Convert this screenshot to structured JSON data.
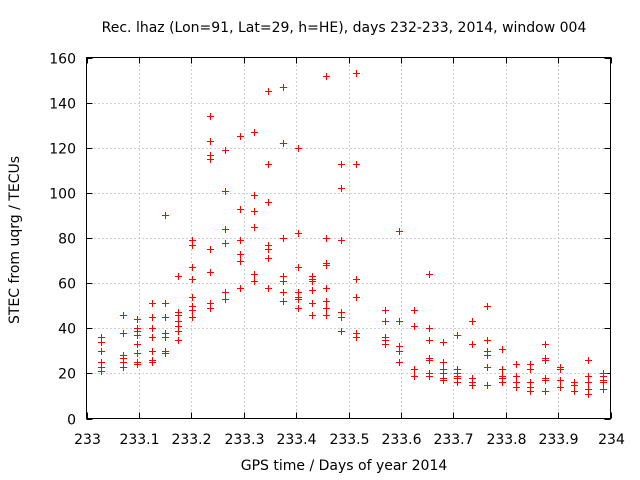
{
  "chart_data": {
    "type": "scatter",
    "title": "Rec. lhaz (Lon=91, Lat=29, h=HE), days 232-233, 2014, window 004",
    "xlabel": "GPS time / Days of year 2014",
    "ylabel": "STEC from uqrg / TECUs",
    "xlim": [
      233,
      234
    ],
    "ylim": [
      0,
      160
    ],
    "xticks": [
      233,
      233.1,
      233.2,
      233.3,
      233.4,
      233.5,
      233.6,
      233.7,
      233.8,
      233.9,
      234
    ],
    "xtick_labels": [
      "233",
      "233.1",
      "233.2",
      "233.3",
      "233.4",
      "233.5",
      "233.6",
      "233.7",
      "233.8",
      "233.9",
      "234"
    ],
    "yticks": [
      0,
      20,
      40,
      60,
      80,
      100,
      120,
      140,
      160
    ],
    "ytick_labels": [
      "0",
      "20",
      "40",
      "60",
      "80",
      "100",
      "120",
      "140",
      "160"
    ],
    "grid": true,
    "legend": "none",
    "marker": "plus",
    "color": "#ff0000",
    "points": [
      [
        233.028,
        36
      ],
      [
        233.028,
        34
      ],
      [
        233.028,
        30
      ],
      [
        233.028,
        25
      ],
      [
        233.028,
        23
      ],
      [
        233.028,
        21
      ],
      [
        233.069,
        46
      ],
      [
        233.069,
        38
      ],
      [
        233.069,
        28
      ],
      [
        233.069,
        27
      ],
      [
        233.069,
        25
      ],
      [
        233.069,
        23
      ],
      [
        233.097,
        44
      ],
      [
        233.097,
        40
      ],
      [
        233.097,
        39
      ],
      [
        233.097,
        37
      ],
      [
        233.097,
        33
      ],
      [
        233.097,
        29
      ],
      [
        233.097,
        25
      ],
      [
        233.097,
        24
      ],
      [
        233.125,
        51
      ],
      [
        233.125,
        45
      ],
      [
        233.125,
        40
      ],
      [
        233.125,
        36
      ],
      [
        233.125,
        30
      ],
      [
        233.125,
        26
      ],
      [
        233.125,
        25
      ],
      [
        233.149,
        90
      ],
      [
        233.149,
        51
      ],
      [
        233.149,
        45
      ],
      [
        233.149,
        38
      ],
      [
        233.149,
        36
      ],
      [
        233.149,
        30
      ],
      [
        233.149,
        29
      ],
      [
        233.174,
        63
      ],
      [
        233.174,
        47
      ],
      [
        233.174,
        46
      ],
      [
        233.174,
        43
      ],
      [
        233.174,
        41
      ],
      [
        233.174,
        39
      ],
      [
        233.174,
        35
      ],
      [
        233.201,
        79
      ],
      [
        233.201,
        77
      ],
      [
        233.201,
        67
      ],
      [
        233.201,
        62
      ],
      [
        233.201,
        54
      ],
      [
        233.201,
        50
      ],
      [
        233.201,
        48
      ],
      [
        233.201,
        45
      ],
      [
        233.236,
        134
      ],
      [
        233.236,
        123
      ],
      [
        233.236,
        117
      ],
      [
        233.236,
        115
      ],
      [
        233.236,
        75
      ],
      [
        233.236,
        65
      ],
      [
        233.236,
        51
      ],
      [
        233.236,
        49
      ],
      [
        233.264,
        119
      ],
      [
        233.264,
        101
      ],
      [
        233.264,
        84
      ],
      [
        233.264,
        78
      ],
      [
        233.264,
        56
      ],
      [
        233.264,
        53
      ],
      [
        233.292,
        125
      ],
      [
        233.292,
        93
      ],
      [
        233.292,
        79
      ],
      [
        233.292,
        73
      ],
      [
        233.292,
        70
      ],
      [
        233.292,
        58
      ],
      [
        233.319,
        127
      ],
      [
        233.319,
        99
      ],
      [
        233.319,
        92
      ],
      [
        233.319,
        92
      ],
      [
        233.319,
        85
      ],
      [
        233.319,
        64
      ],
      [
        233.319,
        61
      ],
      [
        233.347,
        145
      ],
      [
        233.347,
        113
      ],
      [
        233.347,
        96
      ],
      [
        233.347,
        77
      ],
      [
        233.347,
        75
      ],
      [
        233.347,
        71
      ],
      [
        233.347,
        58
      ],
      [
        233.375,
        147
      ],
      [
        233.375,
        122
      ],
      [
        233.375,
        80
      ],
      [
        233.375,
        63
      ],
      [
        233.375,
        61
      ],
      [
        233.375,
        56
      ],
      [
        233.375,
        52
      ],
      [
        233.403,
        120
      ],
      [
        233.403,
        82
      ],
      [
        233.403,
        67
      ],
      [
        233.403,
        56
      ],
      [
        233.403,
        54
      ],
      [
        233.403,
        53
      ],
      [
        233.403,
        49
      ],
      [
        233.431,
        63
      ],
      [
        233.431,
        62
      ],
      [
        233.431,
        61
      ],
      [
        233.431,
        57
      ],
      [
        233.431,
        51
      ],
      [
        233.431,
        46
      ],
      [
        233.458,
        152
      ],
      [
        233.458,
        80
      ],
      [
        233.458,
        69
      ],
      [
        233.458,
        68
      ],
      [
        233.458,
        58
      ],
      [
        233.458,
        52
      ],
      [
        233.458,
        49
      ],
      [
        233.458,
        46
      ],
      [
        233.486,
        113
      ],
      [
        233.486,
        102
      ],
      [
        233.486,
        79
      ],
      [
        233.486,
        47
      ],
      [
        233.486,
        45
      ],
      [
        233.486,
        39
      ],
      [
        233.514,
        153
      ],
      [
        233.514,
        113
      ],
      [
        233.514,
        62
      ],
      [
        233.514,
        54
      ],
      [
        233.514,
        38
      ],
      [
        233.514,
        36
      ],
      [
        233.569,
        48
      ],
      [
        233.569,
        43
      ],
      [
        233.569,
        36
      ],
      [
        233.569,
        35
      ],
      [
        233.569,
        33
      ],
      [
        233.597,
        83
      ],
      [
        233.597,
        43
      ],
      [
        233.597,
        32
      ],
      [
        233.597,
        30
      ],
      [
        233.597,
        25
      ],
      [
        233.625,
        48
      ],
      [
        233.625,
        41
      ],
      [
        233.625,
        22
      ],
      [
        233.625,
        19
      ],
      [
        233.653,
        64
      ],
      [
        233.653,
        40
      ],
      [
        233.653,
        35
      ],
      [
        233.653,
        27
      ],
      [
        233.653,
        26
      ],
      [
        233.653,
        20
      ],
      [
        233.653,
        19
      ],
      [
        233.681,
        34
      ],
      [
        233.681,
        25
      ],
      [
        233.681,
        22
      ],
      [
        233.681,
        20
      ],
      [
        233.681,
        18
      ],
      [
        233.681,
        17
      ],
      [
        233.708,
        37
      ],
      [
        233.708,
        22
      ],
      [
        233.708,
        20
      ],
      [
        233.708,
        19
      ],
      [
        233.708,
        18
      ],
      [
        233.708,
        16
      ],
      [
        233.736,
        43
      ],
      [
        233.736,
        33
      ],
      [
        233.736,
        18
      ],
      [
        233.736,
        16
      ],
      [
        233.736,
        15
      ],
      [
        233.764,
        50
      ],
      [
        233.764,
        35
      ],
      [
        233.764,
        30
      ],
      [
        233.764,
        28
      ],
      [
        233.764,
        23
      ],
      [
        233.764,
        15
      ],
      [
        233.792,
        31
      ],
      [
        233.792,
        22
      ],
      [
        233.792,
        19
      ],
      [
        233.792,
        18
      ],
      [
        233.792,
        16
      ],
      [
        233.819,
        24
      ],
      [
        233.819,
        19
      ],
      [
        233.819,
        16
      ],
      [
        233.819,
        14
      ],
      [
        233.847,
        24
      ],
      [
        233.847,
        22
      ],
      [
        233.847,
        16
      ],
      [
        233.847,
        14
      ],
      [
        233.847,
        12
      ],
      [
        233.875,
        33
      ],
      [
        233.875,
        27
      ],
      [
        233.875,
        26
      ],
      [
        233.875,
        18
      ],
      [
        233.875,
        17
      ],
      [
        233.875,
        12
      ],
      [
        233.903,
        23
      ],
      [
        233.903,
        22
      ],
      [
        233.903,
        17
      ],
      [
        233.903,
        14
      ],
      [
        233.931,
        16
      ],
      [
        233.931,
        15
      ],
      [
        233.931,
        12
      ],
      [
        233.958,
        26
      ],
      [
        233.958,
        19
      ],
      [
        233.958,
        16
      ],
      [
        233.958,
        13
      ],
      [
        233.958,
        11
      ],
      [
        233.986,
        20
      ],
      [
        233.986,
        19
      ],
      [
        233.986,
        17
      ],
      [
        233.986,
        16
      ],
      [
        233.986,
        13
      ]
    ]
  }
}
